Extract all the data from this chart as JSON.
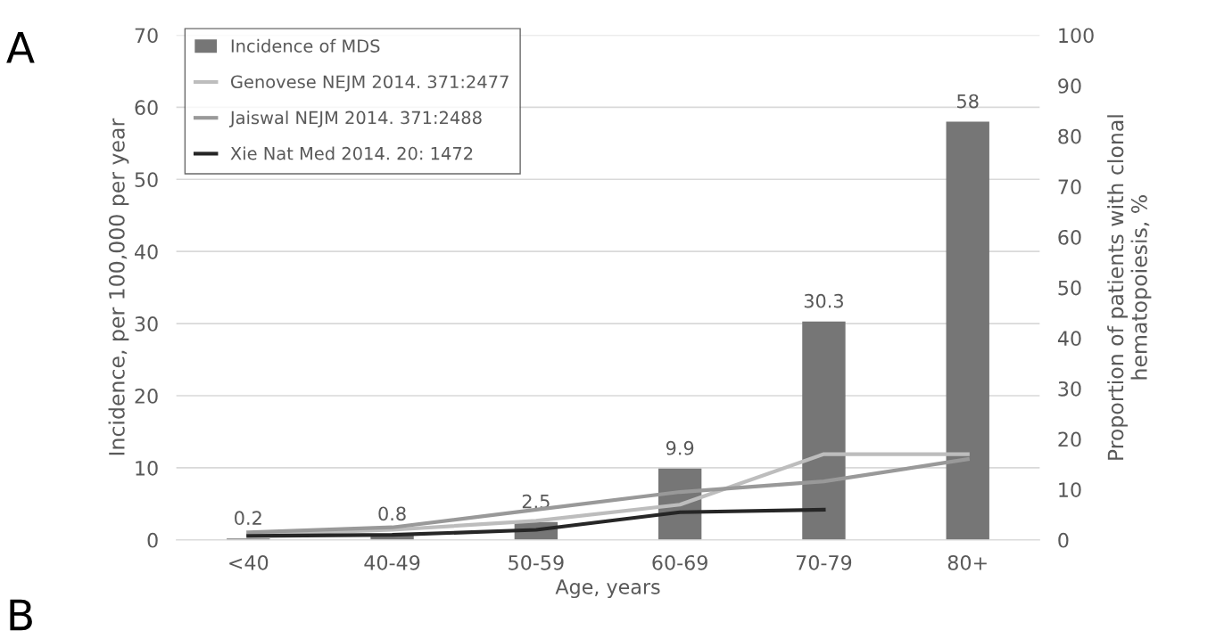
{
  "chart_data": {
    "type": "bar",
    "xlabel": "Age, years",
    "ylabel": "Incidence, per 100,000 per year",
    "y2label": "Proportion of patients with clonal\nhematopoiesis, %",
    "categories": [
      "<40",
      "40-49",
      "50-59",
      "60-69",
      "70-79",
      "80+"
    ],
    "series": [
      {
        "name": "Incidence of MDS",
        "color": "#767676",
        "values": [
          0.2,
          0.8,
          2.5,
          9.9,
          30.3,
          58
        ],
        "value_labels": [
          "0.2",
          "0.8",
          "2.5",
          "9.9",
          "30.3",
          "58"
        ]
      },
      {
        "name": "Genovese NEJM 2014. 371:2477",
        "type": "line",
        "axis": "y2",
        "color": "#bdbdbd",
        "values": [
          1,
          2,
          3.8,
          7,
          17,
          17
        ]
      },
      {
        "name": "Jaiswal NEJM 2014. 371:2488",
        "type": "line",
        "axis": "y2",
        "color": "#999999",
        "values": [
          1.5,
          2.5,
          6,
          9.5,
          11.6,
          16
        ]
      },
      {
        "name": "Xie Nat Med 2014. 20: 1472",
        "type": "line",
        "axis": "y2",
        "color": "#262626",
        "values": [
          0.8,
          1,
          2,
          5.5,
          6,
          null
        ]
      }
    ],
    "ylim": [
      0,
      70
    ],
    "yticks": [
      0,
      10,
      20,
      30,
      40,
      50,
      60,
      70
    ],
    "y2lim": [
      0,
      100
    ],
    "y2ticks": [
      0,
      10,
      20,
      30,
      40,
      50,
      60,
      70,
      80,
      90,
      100
    ],
    "grid": "y",
    "legend": "top left",
    "marker": "none",
    "line_style": "solid",
    "annotations": [
      "A",
      "B"
    ]
  }
}
